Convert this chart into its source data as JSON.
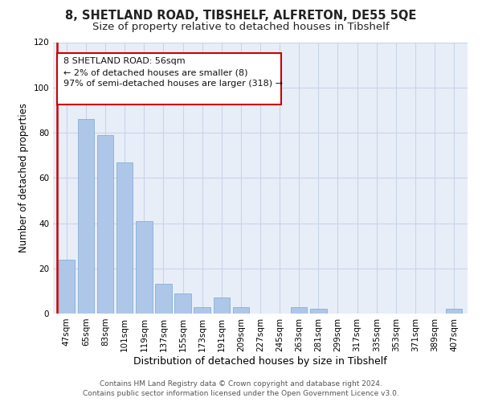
{
  "title": "8, SHETLAND ROAD, TIBSHELF, ALFRETON, DE55 5QE",
  "subtitle": "Size of property relative to detached houses in Tibshelf",
  "xlabel": "Distribution of detached houses by size in Tibshelf",
  "ylabel": "Number of detached properties",
  "bar_values": [
    24,
    86,
    79,
    67,
    41,
    13,
    9,
    3,
    7,
    3,
    0,
    0,
    3,
    2,
    0,
    0,
    0,
    0,
    0,
    0,
    2
  ],
  "bin_labels": [
    "47sqm",
    "65sqm",
    "83sqm",
    "101sqm",
    "119sqm",
    "137sqm",
    "155sqm",
    "173sqm",
    "191sqm",
    "209sqm",
    "227sqm",
    "245sqm",
    "263sqm",
    "281sqm",
    "299sqm",
    "317sqm",
    "335sqm",
    "353sqm",
    "371sqm",
    "389sqm",
    "407sqm"
  ],
  "bar_color": "#aec6e8",
  "annotation_box_text": "8 SHETLAND ROAD: 56sqm\n← 2% of detached houses are smaller (8)\n97% of semi-detached houses are larger (318) →",
  "ylim": [
    0,
    120
  ],
  "yticks": [
    0,
    20,
    40,
    60,
    80,
    100,
    120
  ],
  "background_color": "#ffffff",
  "plot_bg_color": "#e8eef8",
  "grid_color": "#c8d4e8",
  "footer_line1": "Contains HM Land Registry data © Crown copyright and database right 2024.",
  "footer_line2": "Contains public sector information licensed under the Open Government Licence v3.0.",
  "title_fontsize": 10.5,
  "subtitle_fontsize": 9.5,
  "xlabel_fontsize": 9,
  "ylabel_fontsize": 8.5,
  "tick_fontsize": 7.5,
  "annotation_fontsize": 8,
  "footer_fontsize": 6.5
}
